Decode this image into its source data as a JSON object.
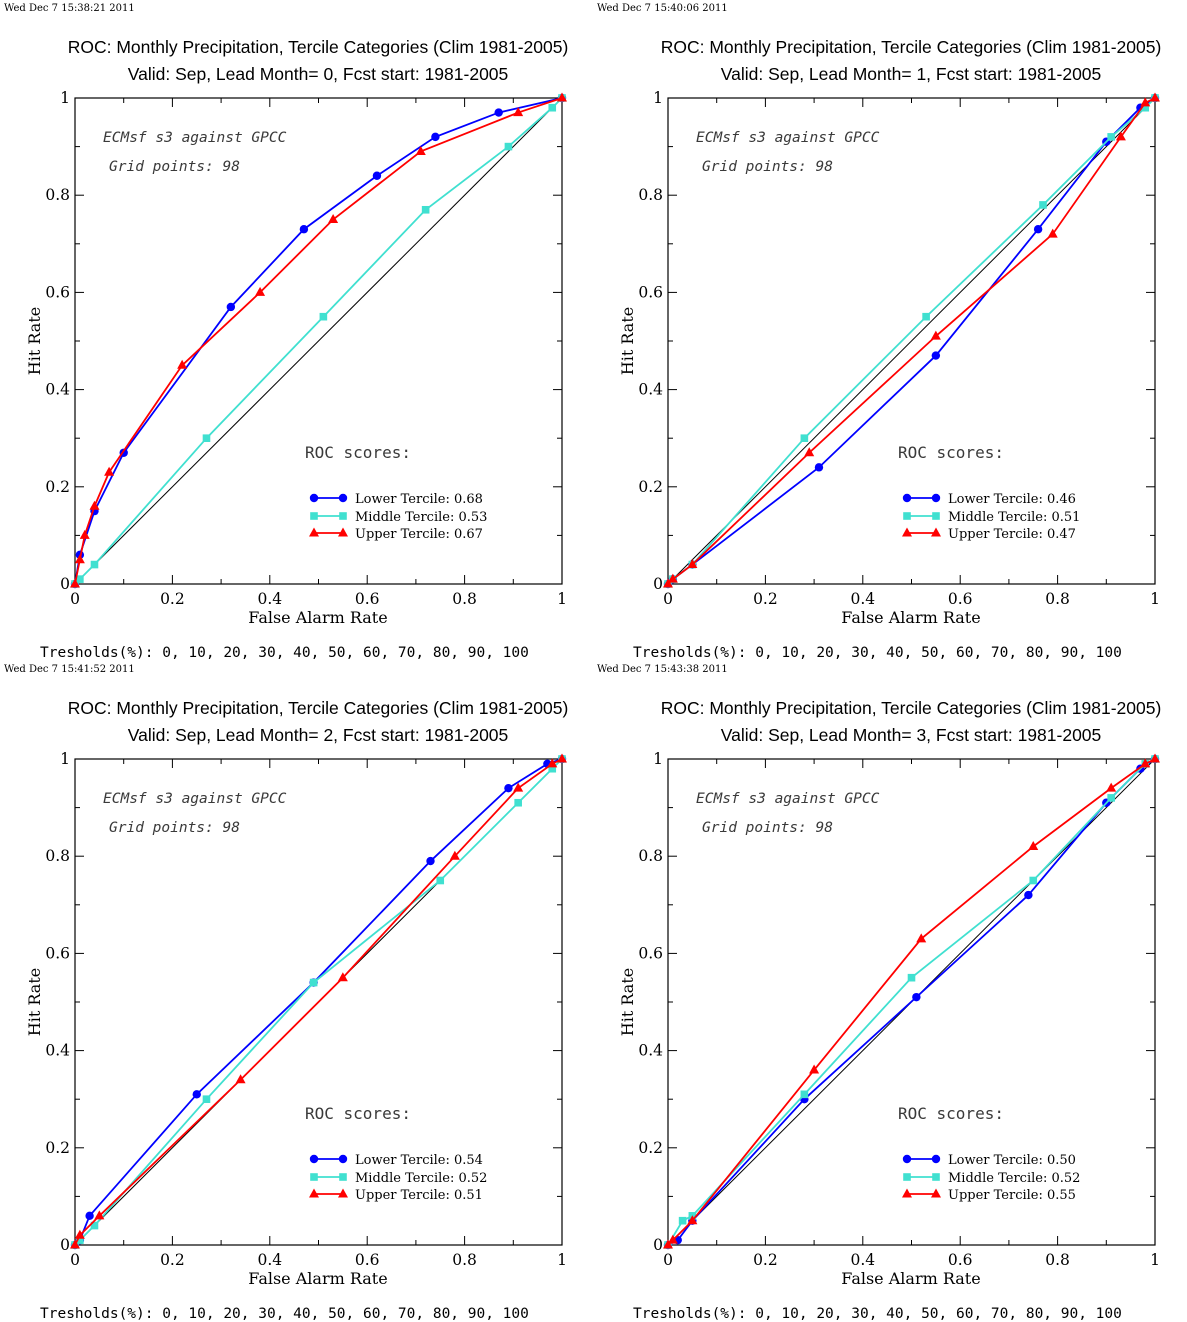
{
  "colors": {
    "lower": "#0000ff",
    "middle": "#40e0d0",
    "upper": "#ff0000",
    "diagonal": "#000000"
  },
  "panels": [
    {
      "timestamp": "Wed Dec  7 15:38:21 2011",
      "title_line1": "ROC: Monthly Precipitation, Tercile Categories (Clim 1981-2005)",
      "title_line2": "Valid: Sep, Lead Month= 0, Fcst start: 1981-2005",
      "annotation_line1": "ECMsf s3 against GPCC",
      "annotation_line2": "Grid points:   98",
      "roc_heading": "ROC scores:",
      "legend": [
        "Lower Tercile: 0.68",
        "Middle Tercile: 0.53",
        "Upper Tercile: 0.67"
      ],
      "thresholds": "Tresholds(%): 0, 10, 20, 30, 40, 50, 60, 70, 80, 90, 100"
    },
    {
      "timestamp": "Wed Dec  7 15:40:06 2011",
      "title_line1": "ROC: Monthly Precipitation, Tercile Categories (Clim 1981-2005)",
      "title_line2": "Valid: Sep, Lead Month= 1, Fcst start: 1981-2005",
      "annotation_line1": "ECMsf s3 against GPCC",
      "annotation_line2": "Grid points:   98",
      "roc_heading": "ROC scores:",
      "legend": [
        "Lower Tercile: 0.46",
        "Middle Tercile: 0.51",
        "Upper Tercile: 0.47"
      ],
      "thresholds": "Tresholds(%): 0, 10, 20, 30, 40, 50, 60, 70, 80, 90, 100"
    },
    {
      "timestamp": "Wed Dec  7 15:41:52 2011",
      "title_line1": "ROC: Monthly Precipitation, Tercile Categories (Clim 1981-2005)",
      "title_line2": "Valid: Sep, Lead Month= 2, Fcst start: 1981-2005",
      "annotation_line1": "ECMsf s3 against GPCC",
      "annotation_line2": "Grid points:   98",
      "roc_heading": "ROC scores:",
      "legend": [
        "Lower Tercile: 0.54",
        "Middle Tercile: 0.52",
        "Upper Tercile: 0.51"
      ],
      "thresholds": "Tresholds(%): 0, 10, 20, 30, 40, 50, 60, 70, 80, 90, 100"
    },
    {
      "timestamp": "Wed Dec  7 15:43:38 2011",
      "title_line1": "ROC: Monthly Precipitation, Tercile Categories (Clim 1981-2005)",
      "title_line2": "Valid: Sep, Lead Month= 3, Fcst start: 1981-2005",
      "annotation_line1": "ECMsf s3 against GPCC",
      "annotation_line2": "Grid points:   98",
      "roc_heading": "ROC scores:",
      "legend": [
        "Lower Tercile: 0.50",
        "Middle Tercile: 0.52",
        "Upper Tercile: 0.55"
      ],
      "thresholds": "Tresholds(%): 0, 10, 20, 30, 40, 50, 60, 70, 80, 90, 100"
    }
  ],
  "chart_data": [
    {
      "type": "line",
      "xlabel": "False Alarm Rate",
      "ylabel": "Hit Rate",
      "xlim": [
        0,
        1
      ],
      "ylim": [
        0,
        1
      ],
      "x_ticks": [
        "0",
        "0.2",
        "0.4",
        "0.6",
        "0.8",
        "1"
      ],
      "y_ticks": [
        "0",
        "0.2",
        "0.4",
        "0.6",
        "0.8",
        "1"
      ],
      "diagonal": true,
      "series": [
        {
          "name": "Lower Tercile",
          "marker": "circle",
          "x": [
            0,
            0.01,
            0.04,
            0.1,
            0.32,
            0.47,
            0.62,
            0.74,
            0.87,
            1.0
          ],
          "y": [
            0,
            0.06,
            0.15,
            0.27,
            0.57,
            0.73,
            0.84,
            0.92,
            0.97,
            1.0
          ]
        },
        {
          "name": "Middle Tercile",
          "marker": "square",
          "x": [
            0,
            0.01,
            0.04,
            0.27,
            0.51,
            0.72,
            0.89,
            0.98,
            1.0
          ],
          "y": [
            0,
            0.01,
            0.04,
            0.3,
            0.55,
            0.77,
            0.9,
            0.98,
            1.0
          ]
        },
        {
          "name": "Upper Tercile",
          "marker": "triangle",
          "x": [
            0,
            0.01,
            0.02,
            0.04,
            0.07,
            0.22,
            0.38,
            0.53,
            0.71,
            0.91,
            1.0
          ],
          "y": [
            0,
            0.05,
            0.1,
            0.16,
            0.23,
            0.45,
            0.6,
            0.75,
            0.89,
            0.97,
            1.0
          ]
        }
      ]
    },
    {
      "type": "line",
      "xlabel": "False Alarm Rate",
      "ylabel": "Hit Rate",
      "xlim": [
        0,
        1
      ],
      "ylim": [
        0,
        1
      ],
      "x_ticks": [
        "0",
        "0.2",
        "0.4",
        "0.6",
        "0.8",
        "1"
      ],
      "y_ticks": [
        "0",
        "0.2",
        "0.4",
        "0.6",
        "0.8",
        "1"
      ],
      "diagonal": true,
      "series": [
        {
          "name": "Lower Tercile",
          "marker": "circle",
          "x": [
            0,
            0.01,
            0.05,
            0.31,
            0.55,
            0.76,
            0.9,
            0.97,
            1.0
          ],
          "y": [
            0,
            0.01,
            0.04,
            0.24,
            0.47,
            0.73,
            0.91,
            0.98,
            1.0
          ]
        },
        {
          "name": "Middle Tercile",
          "marker": "square",
          "x": [
            0,
            0.01,
            0.05,
            0.28,
            0.53,
            0.77,
            0.91,
            0.98,
            1.0
          ],
          "y": [
            0,
            0.01,
            0.04,
            0.3,
            0.55,
            0.78,
            0.92,
            0.98,
            1.0
          ]
        },
        {
          "name": "Upper Tercile",
          "marker": "triangle",
          "x": [
            0,
            0.01,
            0.05,
            0.29,
            0.55,
            0.79,
            0.93,
            0.98,
            1.0
          ],
          "y": [
            0,
            0.01,
            0.04,
            0.27,
            0.51,
            0.72,
            0.92,
            0.99,
            1.0
          ]
        }
      ]
    },
    {
      "type": "line",
      "xlabel": "False Alarm Rate",
      "ylabel": "Hit Rate",
      "xlim": [
        0,
        1
      ],
      "ylim": [
        0,
        1
      ],
      "x_ticks": [
        "0",
        "0.2",
        "0.4",
        "0.6",
        "0.8",
        "1"
      ],
      "y_ticks": [
        "0",
        "0.2",
        "0.4",
        "0.6",
        "0.8",
        "1"
      ],
      "diagonal": true,
      "series": [
        {
          "name": "Lower Tercile",
          "marker": "circle",
          "x": [
            0,
            0.01,
            0.03,
            0.25,
            0.49,
            0.73,
            0.89,
            0.97,
            1.0
          ],
          "y": [
            0,
            0.01,
            0.06,
            0.31,
            0.54,
            0.79,
            0.94,
            0.99,
            1.0
          ]
        },
        {
          "name": "Middle Tercile",
          "marker": "square",
          "x": [
            0,
            0.01,
            0.04,
            0.27,
            0.49,
            0.75,
            0.91,
            0.98,
            1.0
          ],
          "y": [
            0,
            0.01,
            0.04,
            0.3,
            0.54,
            0.75,
            0.91,
            0.98,
            1.0
          ]
        },
        {
          "name": "Upper Tercile",
          "marker": "triangle",
          "x": [
            0,
            0.01,
            0.05,
            0.34,
            0.55,
            0.78,
            0.91,
            0.98,
            1.0
          ],
          "y": [
            0,
            0.02,
            0.06,
            0.34,
            0.55,
            0.8,
            0.94,
            0.99,
            1.0
          ]
        }
      ]
    },
    {
      "type": "line",
      "xlabel": "False Alarm Rate",
      "ylabel": "Hit Rate",
      "xlim": [
        0,
        1
      ],
      "ylim": [
        0,
        1
      ],
      "x_ticks": [
        "0",
        "0.2",
        "0.4",
        "0.6",
        "0.8",
        "1"
      ],
      "y_ticks": [
        "0",
        "0.2",
        "0.4",
        "0.6",
        "0.8",
        "1"
      ],
      "diagonal": true,
      "series": [
        {
          "name": "Lower Tercile",
          "marker": "circle",
          "x": [
            0,
            0.02,
            0.05,
            0.28,
            0.51,
            0.74,
            0.9,
            0.97,
            1.0
          ],
          "y": [
            0,
            0.01,
            0.05,
            0.3,
            0.51,
            0.72,
            0.91,
            0.98,
            1.0
          ]
        },
        {
          "name": "Middle Tercile",
          "marker": "square",
          "x": [
            0,
            0.03,
            0.05,
            0.28,
            0.5,
            0.75,
            0.91,
            0.98,
            1.0
          ],
          "y": [
            0,
            0.05,
            0.06,
            0.31,
            0.55,
            0.75,
            0.92,
            0.99,
            1.0
          ]
        },
        {
          "name": "Upper Tercile",
          "marker": "triangle",
          "x": [
            0,
            0.01,
            0.05,
            0.3,
            0.52,
            0.75,
            0.91,
            0.98,
            1.0
          ],
          "y": [
            0,
            0.01,
            0.05,
            0.36,
            0.63,
            0.82,
            0.94,
            0.99,
            1.0
          ]
        }
      ]
    }
  ]
}
